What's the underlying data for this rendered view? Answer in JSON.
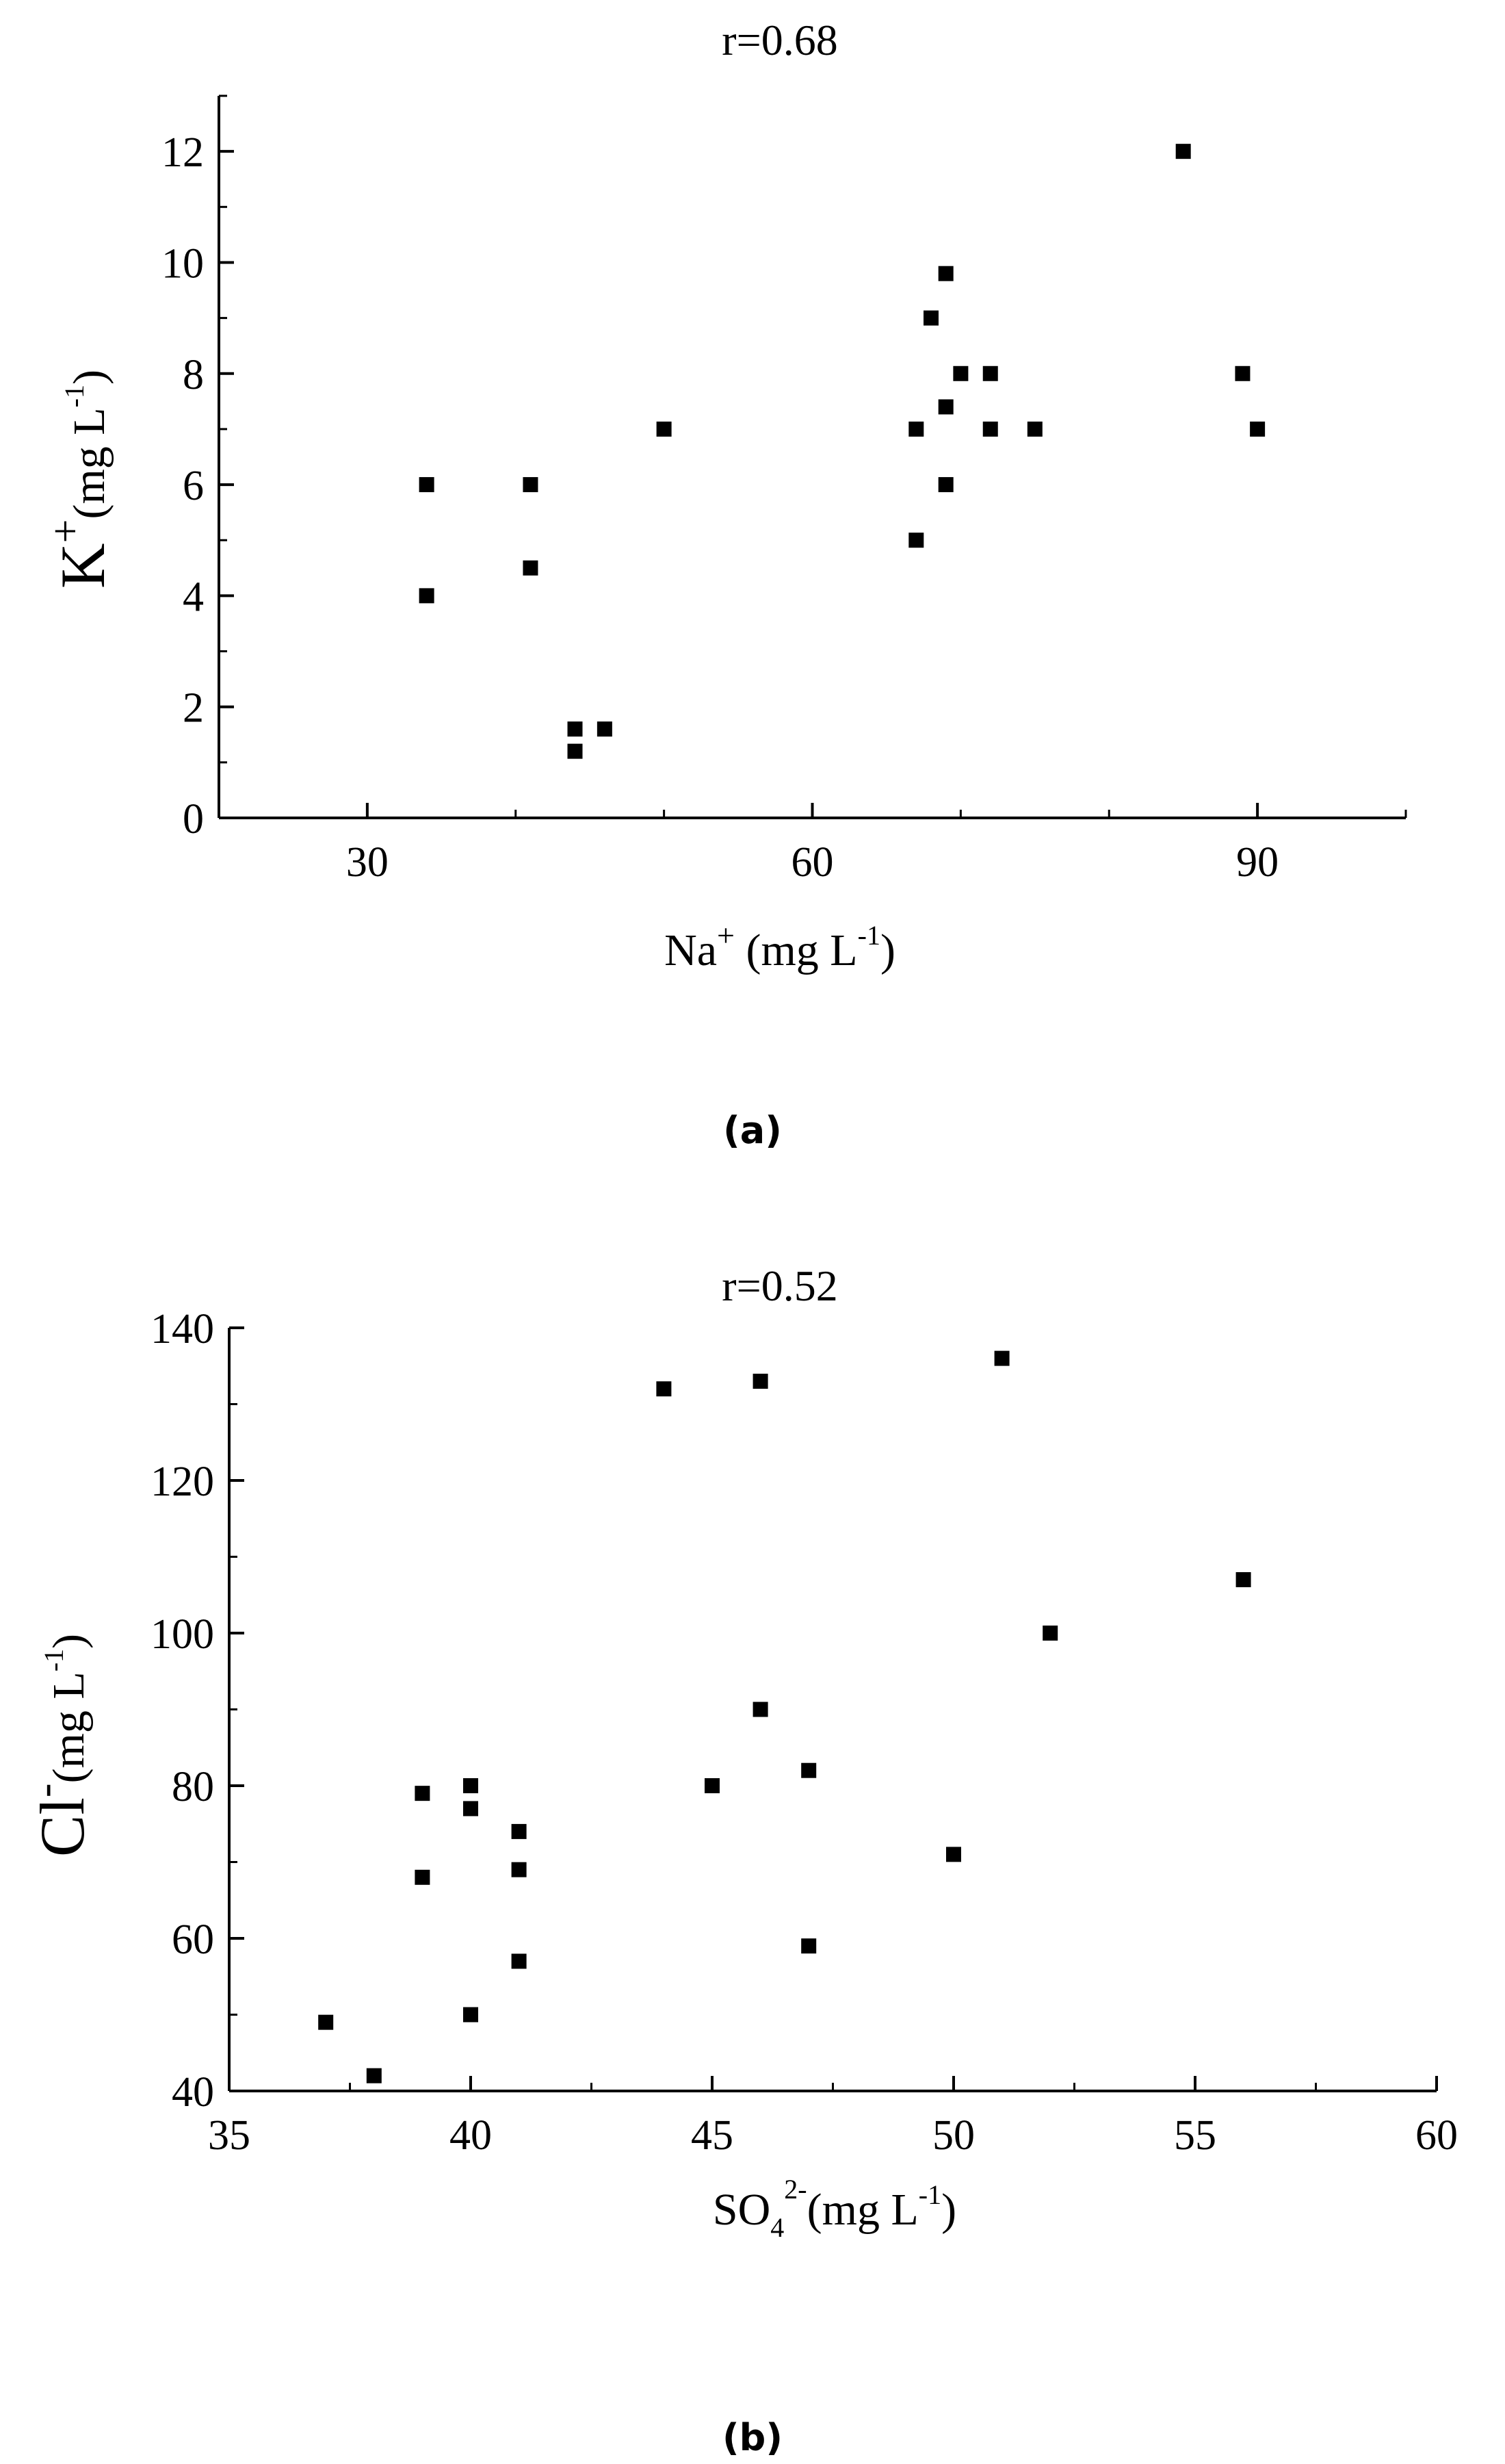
{
  "chart_data": [
    {
      "type": "scatter",
      "title": "r=0.68",
      "panel_label": "(a)",
      "xlabel": {
        "base": "Na",
        "sup": "+",
        "unit_open": " (mg L",
        "unit_sup": "-1",
        "unit_close": ")"
      },
      "ylabel": {
        "base": "K",
        "sup": "+",
        "unit_open": "(mg L",
        "unit_sup": "-1",
        "unit_close": ")"
      },
      "xlim": [
        20,
        100
      ],
      "ylim": [
        0,
        13
      ],
      "xticks": [
        30,
        60,
        90
      ],
      "yticks": [
        0,
        2,
        4,
        6,
        8,
        10,
        12
      ],
      "grid": false,
      "marker": "square",
      "color": "#000000",
      "points": [
        {
          "x": 34,
          "y": 6
        },
        {
          "x": 34,
          "y": 4
        },
        {
          "x": 41,
          "y": 6
        },
        {
          "x": 41,
          "y": 4.5
        },
        {
          "x": 44,
          "y": 1.6
        },
        {
          "x": 44,
          "y": 1.2
        },
        {
          "x": 46,
          "y": 1.6
        },
        {
          "x": 50,
          "y": 7
        },
        {
          "x": 67,
          "y": 7
        },
        {
          "x": 67,
          "y": 5
        },
        {
          "x": 68,
          "y": 9
        },
        {
          "x": 69,
          "y": 9.8
        },
        {
          "x": 69,
          "y": 7.4
        },
        {
          "x": 69,
          "y": 6
        },
        {
          "x": 70,
          "y": 8
        },
        {
          "x": 72,
          "y": 8
        },
        {
          "x": 72,
          "y": 7
        },
        {
          "x": 75,
          "y": 7
        },
        {
          "x": 85,
          "y": 12
        },
        {
          "x": 89,
          "y": 8
        },
        {
          "x": 90,
          "y": 7
        }
      ]
    },
    {
      "type": "scatter",
      "title": "r=0.52",
      "panel_label": "(b)",
      "xlabel": {
        "base": "SO",
        "sub": "4",
        "sup": "2-",
        "unit_open": "(mg L",
        "unit_sup": "-1",
        "unit_close": ")"
      },
      "ylabel": {
        "base": "Cl",
        "sup": "-",
        "unit_open": "(mg L",
        "unit_sup": "-1",
        "unit_close": ")"
      },
      "xlim": [
        35,
        60
      ],
      "ylim": [
        40,
        140
      ],
      "xticks": [
        35,
        40,
        45,
        50,
        55,
        60
      ],
      "yticks": [
        40,
        60,
        80,
        100,
        120,
        140
      ],
      "grid": false,
      "marker": "square",
      "color": "#000000",
      "points": [
        {
          "x": 37,
          "y": 49
        },
        {
          "x": 38,
          "y": 42
        },
        {
          "x": 39,
          "y": 79
        },
        {
          "x": 39,
          "y": 68
        },
        {
          "x": 40,
          "y": 80
        },
        {
          "x": 40,
          "y": 77
        },
        {
          "x": 40,
          "y": 50
        },
        {
          "x": 41,
          "y": 74
        },
        {
          "x": 41,
          "y": 69
        },
        {
          "x": 41,
          "y": 57
        },
        {
          "x": 44,
          "y": 132
        },
        {
          "x": 45,
          "y": 80
        },
        {
          "x": 46,
          "y": 133
        },
        {
          "x": 46,
          "y": 90
        },
        {
          "x": 47,
          "y": 82
        },
        {
          "x": 47,
          "y": 59
        },
        {
          "x": 50,
          "y": 71
        },
        {
          "x": 51,
          "y": 136
        },
        {
          "x": 52,
          "y": 100
        },
        {
          "x": 56,
          "y": 107
        }
      ]
    }
  ]
}
